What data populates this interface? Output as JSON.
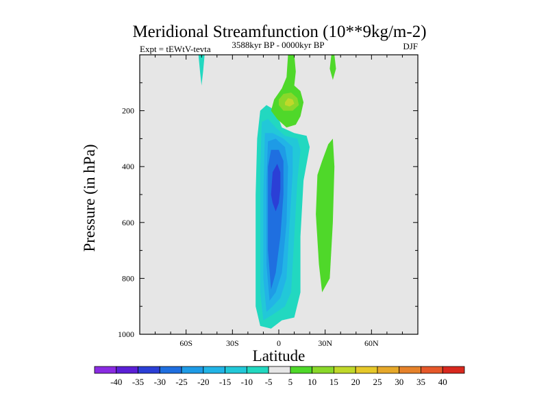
{
  "chart_data": {
    "type": "heatmap",
    "title": "Meridional Streamfunction (10**9kg/m-2)",
    "left_label": "Expt = tEWtV-tevta",
    "center_label": "3588kyr BP - 0000kyr BP",
    "right_label": "DJF",
    "xlabel": "Latitude",
    "ylabel": "Pressure (in hPa)",
    "xlim": [
      -90,
      90
    ],
    "ylim": [
      1000,
      0
    ],
    "x_ticks": [
      -60,
      -30,
      0,
      30,
      60
    ],
    "x_tick_labels": [
      "60S",
      "30S",
      "0",
      "30N",
      "60N"
    ],
    "y_ticks": [
      200,
      400,
      600,
      800,
      1000
    ],
    "y_tick_labels": [
      "200",
      "400",
      "600",
      "800",
      "1000"
    ],
    "background_color": "#e6e6e6",
    "colorbar": {
      "levels": [
        "-40",
        "-35",
        "-30",
        "-25",
        "-20",
        "-15",
        "-10",
        "-5",
        "5",
        "10",
        "15",
        "20",
        "25",
        "30",
        "35",
        "40"
      ],
      "colors": [
        "#8a2be2",
        "#5b1fd6",
        "#2b3fd6",
        "#1f6fe0",
        "#1e9be6",
        "#22b4e6",
        "#22c8d8",
        "#22d8c0",
        "#e6e6e6",
        "#4fd82a",
        "#8ad82a",
        "#c0d82a",
        "#e6c82a",
        "#e6a82a",
        "#e6822a",
        "#e6582a",
        "#d8281e"
      ]
    },
    "contours": [
      {
        "level": "-5",
        "color": "#22d8c0",
        "points": [
          [
            -12,
            970
          ],
          [
            -15,
            900
          ],
          [
            -15,
            700
          ],
          [
            -15,
            500
          ],
          [
            -14,
            300
          ],
          [
            -12,
            200
          ],
          [
            -8,
            180
          ],
          [
            -2,
            200
          ],
          [
            2,
            260
          ],
          [
            10,
            280
          ],
          [
            18,
            290
          ],
          [
            20,
            330
          ],
          [
            16,
            450
          ],
          [
            14,
            650
          ],
          [
            14,
            850
          ],
          [
            10,
            940
          ],
          [
            2,
            950
          ],
          [
            -5,
            980
          ],
          [
            -12,
            970
          ]
        ]
      },
      {
        "level": "-5",
        "color": "#22d8c0",
        "points": [
          [
            -52,
            0
          ],
          [
            -51,
            60
          ],
          [
            -50,
            110
          ],
          [
            -49,
            60
          ],
          [
            -48,
            0
          ]
        ]
      },
      {
        "level": "-10",
        "color": "#22c8d8",
        "points": [
          [
            -10,
            950
          ],
          [
            -12,
            850
          ],
          [
            -12,
            600
          ],
          [
            -12,
            400
          ],
          [
            -11,
            240
          ],
          [
            -7,
            230
          ],
          [
            -2,
            260
          ],
          [
            4,
            290
          ],
          [
            12,
            300
          ],
          [
            14,
            340
          ],
          [
            12,
            450
          ],
          [
            10,
            650
          ],
          [
            8,
            850
          ],
          [
            4,
            900
          ],
          [
            -4,
            930
          ],
          [
            -10,
            950
          ]
        ]
      },
      {
        "level": "-15",
        "color": "#22b4e6",
        "points": [
          [
            -8,
            920
          ],
          [
            -10,
            800
          ],
          [
            -10,
            500
          ],
          [
            -9,
            280
          ],
          [
            -4,
            280
          ],
          [
            3,
            300
          ],
          [
            9,
            330
          ],
          [
            9,
            420
          ],
          [
            7,
            600
          ],
          [
            5,
            800
          ],
          [
            1,
            870
          ],
          [
            -4,
            900
          ],
          [
            -8,
            920
          ]
        ]
      },
      {
        "level": "-20",
        "color": "#1e9be6",
        "points": [
          [
            -6,
            880
          ],
          [
            -8,
            750
          ],
          [
            -8,
            450
          ],
          [
            -7,
            310
          ],
          [
            -2,
            300
          ],
          [
            4,
            330
          ],
          [
            6,
            400
          ],
          [
            5,
            600
          ],
          [
            2,
            780
          ],
          [
            -2,
            850
          ],
          [
            -6,
            880
          ]
        ]
      },
      {
        "level": "-25",
        "color": "#1f6fe0",
        "points": [
          [
            -5,
            840
          ],
          [
            -7,
            700
          ],
          [
            -7,
            400
          ],
          [
            -5,
            340
          ],
          [
            0,
            340
          ],
          [
            3,
            380
          ],
          [
            3,
            500
          ],
          [
            1,
            650
          ],
          [
            -2,
            780
          ],
          [
            -5,
            840
          ]
        ]
      },
      {
        "level": "-30",
        "color": "#2b3fd6",
        "points": [
          [
            -5,
            500
          ],
          [
            -4,
            420
          ],
          [
            -1,
            390
          ],
          [
            1,
            420
          ],
          [
            1,
            480
          ],
          [
            0,
            530
          ],
          [
            -2,
            560
          ],
          [
            -4,
            530
          ],
          [
            -5,
            500
          ]
        ]
      },
      {
        "level": "5",
        "color": "#4fd82a",
        "points": [
          [
            6,
            0
          ],
          [
            5,
            80
          ],
          [
            2,
            120
          ],
          [
            -3,
            160
          ],
          [
            -5,
            200
          ],
          [
            -1,
            230
          ],
          [
            5,
            260
          ],
          [
            11,
            250
          ],
          [
            14,
            220
          ],
          [
            16,
            170
          ],
          [
            14,
            130
          ],
          [
            10,
            110
          ],
          [
            11,
            60
          ],
          [
            10,
            0
          ]
        ]
      },
      {
        "level": "5",
        "color": "#4fd82a",
        "points": [
          [
            34,
            0
          ],
          [
            33,
            50
          ],
          [
            35,
            90
          ],
          [
            37,
            50
          ],
          [
            36,
            0
          ]
        ]
      },
      {
        "level": "5",
        "color": "#4fd82a",
        "points": [
          [
            24,
            570
          ],
          [
            25,
            430
          ],
          [
            28,
            380
          ],
          [
            32,
            320
          ],
          [
            35,
            300
          ],
          [
            36,
            400
          ],
          [
            35,
            600
          ],
          [
            33,
            800
          ],
          [
            28,
            850
          ],
          [
            26,
            750
          ],
          [
            24,
            570
          ]
        ]
      },
      {
        "level": "10",
        "color": "#8ad82a",
        "points": [
          [
            0,
            160
          ],
          [
            3,
            140
          ],
          [
            8,
            135
          ],
          [
            12,
            155
          ],
          [
            13,
            180
          ],
          [
            9,
            200
          ],
          [
            3,
            200
          ],
          [
            0,
            180
          ],
          [
            0,
            160
          ]
        ]
      },
      {
        "level": "15",
        "color": "#c0d82a",
        "points": [
          [
            4,
            170
          ],
          [
            6,
            155
          ],
          [
            9,
            160
          ],
          [
            10,
            175
          ],
          [
            7,
            185
          ],
          [
            4,
            180
          ],
          [
            4,
            170
          ]
        ]
      }
    ]
  }
}
